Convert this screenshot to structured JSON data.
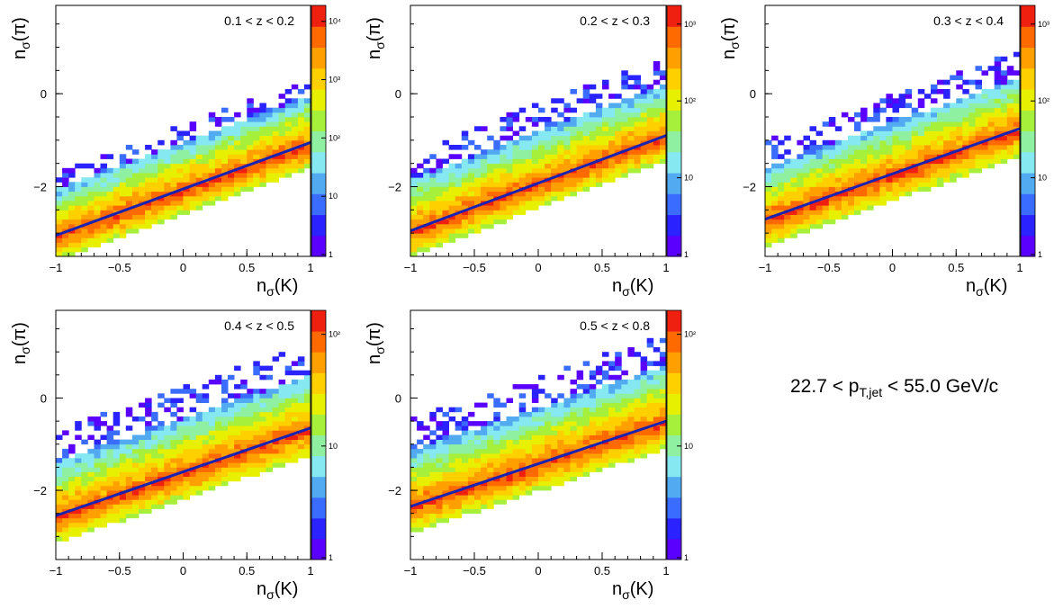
{
  "figure": {
    "label_prefix": "22.7 < p",
    "label_sub": "T,jet",
    "label_suffix": " < 55.0 GeV/c"
  },
  "colors": {
    "fit_line": "#1a22b0",
    "palette": [
      "#5a00ff",
      "#2a22ff",
      "#3a6cff",
      "#52aaf0",
      "#86e8f0",
      "#8ef0a0",
      "#a6f03c",
      "#e6f000",
      "#ffd000",
      "#ffa000",
      "#ff6a00",
      "#f02010"
    ]
  },
  "chart_data": [
    {
      "type": "heatmap",
      "title": "0.1 < z < 0.2",
      "xlabel": "K",
      "ylabel": "π",
      "xlim": [
        -1,
        1
      ],
      "ylim": [
        -3.5,
        1.9
      ],
      "x_ticks": [
        "−1",
        "−0.5",
        "0",
        "0.5",
        "1"
      ],
      "y_ticks": [
        "−2",
        "0"
      ],
      "fit_line": [
        [
          -1,
          -3.05
        ],
        [
          1,
          -1.05
        ]
      ],
      "band": {
        "slope": 1.0,
        "intercept": -2.05,
        "halfwidth_low": 0.55,
        "halfwidth_high": 1.0,
        "top_sparse": 0.4
      },
      "color_scale": "log",
      "colorbar_ticks": [
        "1",
        "10",
        "10²",
        "10³",
        "10⁴"
      ]
    },
    {
      "type": "heatmap",
      "title": "0.2 < z < 0.3",
      "xlabel": "K",
      "ylabel": "π",
      "xlim": [
        -1,
        1
      ],
      "ylim": [
        -3.5,
        1.9
      ],
      "x_ticks": [
        "−1",
        "−0.5",
        "0",
        "0.5",
        "1"
      ],
      "y_ticks": [
        "−2",
        "0"
      ],
      "fit_line": [
        [
          -1,
          -2.95
        ],
        [
          1,
          -0.9
        ]
      ],
      "band": {
        "slope": 1.02,
        "intercept": -1.92,
        "halfwidth_low": 0.55,
        "halfwidth_high": 1.1,
        "top_sparse": 0.6
      },
      "color_scale": "log",
      "colorbar_ticks": [
        "1",
        "10",
        "10²",
        "10³"
      ]
    },
    {
      "type": "heatmap",
      "title": "0.3 < z < 0.4",
      "xlabel": "K",
      "ylabel": "π",
      "xlim": [
        -1,
        1
      ],
      "ylim": [
        -3.5,
        1.9
      ],
      "x_ticks": [
        "−1",
        "−0.5",
        "0",
        "0.5",
        "1"
      ],
      "y_ticks": [
        "−2",
        "0"
      ],
      "fit_line": [
        [
          -1,
          -2.7
        ],
        [
          1,
          -0.75
        ]
      ],
      "band": {
        "slope": 0.98,
        "intercept": -1.72,
        "halfwidth_low": 0.6,
        "halfwidth_high": 1.1,
        "top_sparse": 0.6
      },
      "color_scale": "log",
      "colorbar_ticks": [
        "1",
        "10",
        "10²",
        "10³"
      ]
    },
    {
      "type": "heatmap",
      "title": "0.4 < z < 0.5",
      "xlabel": "K",
      "ylabel": "π",
      "xlim": [
        -1,
        1
      ],
      "ylim": [
        -3.5,
        1.9
      ],
      "x_ticks": [
        "−1",
        "−0.5",
        "0",
        "0.5",
        "1"
      ],
      "y_ticks": [
        "−2",
        "0"
      ],
      "fit_line": [
        [
          -1,
          -2.55
        ],
        [
          1,
          -0.65
        ]
      ],
      "band": {
        "slope": 0.95,
        "intercept": -1.6,
        "halfwidth_low": 0.6,
        "halfwidth_high": 1.15,
        "top_sparse": 0.7
      },
      "color_scale": "log",
      "colorbar_ticks": [
        "1",
        "10",
        "10²"
      ]
    },
    {
      "type": "heatmap",
      "title": "0.5 < z < 0.8",
      "xlabel": "K",
      "ylabel": "π",
      "xlim": [
        -1,
        1
      ],
      "ylim": [
        -3.5,
        1.9
      ],
      "x_ticks": [
        "−1",
        "−0.5",
        "0",
        "0.5",
        "1"
      ],
      "y_ticks": [
        "−2",
        "0"
      ],
      "fit_line": [
        [
          -1,
          -2.35
        ],
        [
          1,
          -0.5
        ]
      ],
      "band": {
        "slope": 0.92,
        "intercept": -1.42,
        "halfwidth_low": 0.6,
        "halfwidth_high": 1.2,
        "top_sparse": 0.7
      },
      "color_scale": "log",
      "colorbar_ticks": [
        "1",
        "10",
        "10²"
      ]
    }
  ]
}
